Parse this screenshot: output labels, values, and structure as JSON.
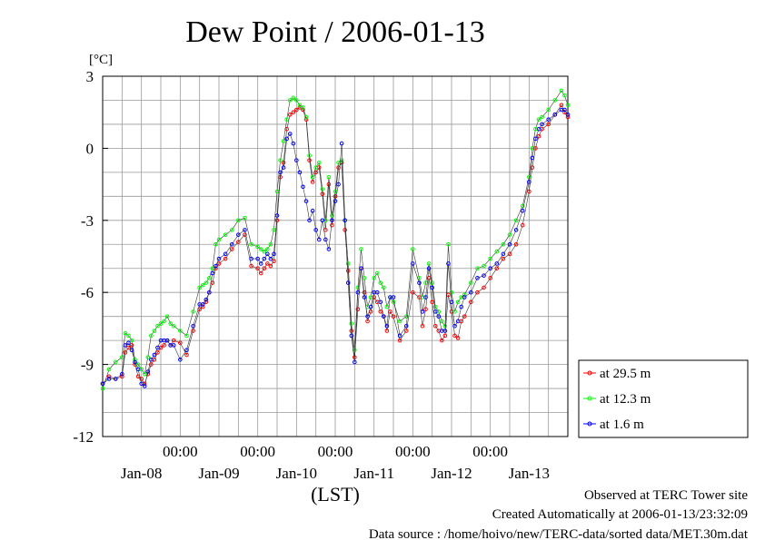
{
  "chart_data": {
    "type": "line",
    "title": "Dew Point / 2006-01-13",
    "ylabel": "[°C]",
    "xlabel": "(LST)",
    "ylim": [
      -12,
      3
    ],
    "yticks": [
      3,
      0,
      -3,
      -6,
      -9,
      -12
    ],
    "ytick_labels": [
      "3",
      "0",
      "-3",
      "-6",
      "-9",
      "-12"
    ],
    "xlim_hours": [
      0,
      144
    ],
    "xtick_labels": [
      "00:00",
      "00:00",
      "00:00",
      "00:00",
      "00:00"
    ],
    "date_labels": [
      "Jan-08",
      "Jan-09",
      "Jan-10",
      "Jan-11",
      "Jan-12",
      "Jan-13"
    ],
    "grid": true,
    "legend_position": "bottom-right",
    "series": [
      {
        "name": "at 29.5 m",
        "color": "#ff0000",
        "x": [
          0,
          2,
          4,
          6,
          7,
          8,
          9,
          10,
          11,
          12,
          13,
          14,
          15,
          16,
          17,
          18,
          19,
          20,
          21,
          22,
          24,
          26,
          28,
          30,
          31,
          32,
          33,
          34,
          35,
          36,
          38,
          40,
          42,
          44,
          46,
          48,
          49,
          50,
          51,
          52,
          53,
          54,
          55,
          56,
          57,
          58,
          59,
          60,
          61,
          62,
          63,
          64,
          65,
          66,
          67,
          68,
          69,
          70,
          71,
          72,
          73,
          74,
          75,
          76,
          77,
          78,
          79,
          80,
          81,
          82,
          83,
          84,
          85,
          86,
          87,
          88,
          89,
          90,
          92,
          94,
          96,
          98,
          99,
          100,
          101,
          102,
          103,
          104,
          105,
          106,
          107,
          108,
          109,
          110,
          111,
          112,
          114,
          116,
          118,
          120,
          122,
          124,
          126,
          128,
          130,
          132,
          133,
          134,
          135,
          136,
          138,
          140,
          142,
          143,
          144
        ],
        "y": [
          -9.8,
          -9.5,
          -9.6,
          -9.5,
          -8.5,
          -8.3,
          -8.2,
          -9.0,
          -9.5,
          -9.6,
          -9.8,
          -9.4,
          -9.0,
          -8.8,
          -8.5,
          -8.3,
          -8.2,
          -8.0,
          -8.2,
          -8.0,
          -8.1,
          -8.6,
          -7.6,
          -6.7,
          -6.6,
          -6.4,
          -6.0,
          -5.6,
          -5.0,
          -4.8,
          -4.6,
          -4.2,
          -3.9,
          -3.6,
          -4.9,
          -5.0,
          -5.2,
          -5.0,
          -4.8,
          -4.9,
          -4.7,
          -3.0,
          -1.2,
          -0.6,
          0.8,
          1.4,
          1.5,
          1.6,
          1.7,
          1.6,
          1.2,
          -0.5,
          -1.4,
          -1.0,
          -0.8,
          -1.9,
          -3.4,
          -1.5,
          -3.2,
          -2.0,
          -0.8,
          -0.6,
          -3.4,
          -5.1,
          -7.6,
          -8.7,
          -6.7,
          -5.0,
          -6.0,
          -7.2,
          -6.8,
          -6.2,
          -6.4,
          -6.8,
          -7.0,
          -7.6,
          -6.8,
          -7.0,
          -8.0,
          -7.6,
          -6.0,
          -6.2,
          -7.4,
          -6.7,
          -5.4,
          -6.4,
          -7.4,
          -7.6,
          -8.0,
          -7.8,
          -6.1,
          -6.8,
          -7.8,
          -7.9,
          -7.2,
          -7.0,
          -6.4,
          -6.0,
          -5.8,
          -5.4,
          -5.0,
          -4.6,
          -4.4,
          -4.0,
          -3.2,
          -1.8,
          -0.8,
          0.0,
          0.5,
          0.8,
          1.0,
          1.4,
          1.8,
          1.5,
          1.3
        ]
      },
      {
        "name": "at 12.3 m",
        "color": "#00ff00",
        "x": [
          0,
          2,
          4,
          6,
          7,
          8,
          9,
          10,
          11,
          12,
          13,
          14,
          15,
          16,
          17,
          18,
          19,
          20,
          21,
          22,
          24,
          26,
          28,
          30,
          31,
          32,
          33,
          34,
          35,
          36,
          38,
          40,
          42,
          44,
          46,
          48,
          49,
          50,
          51,
          52,
          53,
          54,
          55,
          56,
          57,
          58,
          59,
          60,
          61,
          62,
          63,
          64,
          65,
          66,
          67,
          68,
          69,
          70,
          71,
          72,
          73,
          74,
          75,
          76,
          77,
          78,
          79,
          80,
          81,
          82,
          83,
          84,
          85,
          86,
          87,
          88,
          89,
          90,
          92,
          94,
          96,
          98,
          99,
          100,
          101,
          102,
          103,
          104,
          105,
          106,
          107,
          108,
          109,
          110,
          111,
          112,
          114,
          116,
          118,
          120,
          122,
          124,
          126,
          128,
          130,
          132,
          133,
          134,
          135,
          136,
          138,
          140,
          142,
          143,
          144
        ],
        "y": [
          -10.0,
          -9.2,
          -8.9,
          -8.7,
          -7.7,
          -7.8,
          -8.0,
          -8.8,
          -9.0,
          -9.2,
          -9.4,
          -8.7,
          -7.8,
          -7.6,
          -7.4,
          -7.3,
          -7.2,
          -7.0,
          -7.3,
          -7.4,
          -7.6,
          -7.8,
          -6.8,
          -5.8,
          -5.7,
          -5.6,
          -5.4,
          -5.0,
          -4.0,
          -3.8,
          -3.6,
          -3.4,
          -3.0,
          -2.9,
          -4.0,
          -4.1,
          -4.2,
          -4.3,
          -4.2,
          -4.0,
          -3.4,
          -1.8,
          -0.5,
          0.3,
          1.2,
          2.0,
          2.1,
          2.0,
          1.8,
          1.7,
          1.3,
          -0.3,
          -1.2,
          -0.8,
          -0.6,
          -1.7,
          -3.0,
          -1.2,
          -2.8,
          -1.8,
          -0.6,
          -0.5,
          -3.0,
          -4.8,
          -7.3,
          -8.4,
          -5.8,
          -4.2,
          -5.4,
          -6.6,
          -6.2,
          -5.4,
          -5.2,
          -5.6,
          -5.8,
          -6.6,
          -6.2,
          -6.4,
          -7.2,
          -7.0,
          -4.2,
          -5.4,
          -6.2,
          -5.6,
          -4.8,
          -5.6,
          -6.6,
          -6.8,
          -7.2,
          -7.4,
          -4.0,
          -6.0,
          -6.8,
          -6.4,
          -6.2,
          -6.1,
          -5.6,
          -5.0,
          -4.9,
          -4.6,
          -4.3,
          -4.0,
          -3.6,
          -3.0,
          -2.4,
          -1.2,
          0.0,
          0.8,
          1.2,
          1.3,
          1.6,
          2.0,
          2.4,
          2.2,
          1.8
        ]
      },
      {
        "name": "at 1.6 m",
        "color": "#0000ff",
        "x": [
          0,
          2,
          4,
          6,
          7,
          8,
          9,
          10,
          11,
          12,
          13,
          14,
          15,
          16,
          17,
          18,
          19,
          20,
          21,
          22,
          24,
          26,
          28,
          30,
          31,
          32,
          33,
          34,
          35,
          36,
          38,
          40,
          42,
          44,
          46,
          48,
          49,
          50,
          51,
          52,
          53,
          54,
          55,
          56,
          57,
          58,
          59,
          60,
          61,
          62,
          63,
          64,
          65,
          66,
          67,
          68,
          69,
          70,
          71,
          72,
          73,
          74,
          75,
          76,
          77,
          78,
          79,
          80,
          81,
          82,
          83,
          84,
          85,
          86,
          87,
          88,
          89,
          90,
          92,
          94,
          96,
          98,
          99,
          100,
          101,
          102,
          103,
          104,
          105,
          106,
          107,
          108,
          109,
          110,
          111,
          112,
          114,
          116,
          118,
          120,
          122,
          124,
          126,
          128,
          130,
          132,
          133,
          134,
          135,
          136,
          138,
          140,
          142,
          143,
          144
        ],
        "y": [
          -9.8,
          -9.6,
          -9.6,
          -9.4,
          -8.2,
          -8.1,
          -8.4,
          -8.9,
          -9.2,
          -9.8,
          -9.9,
          -9.3,
          -8.8,
          -8.6,
          -8.3,
          -8.0,
          -8.0,
          -8.0,
          -8.2,
          -8.2,
          -8.8,
          -8.4,
          -7.4,
          -6.5,
          -6.5,
          -6.3,
          -6.0,
          -5.2,
          -4.9,
          -4.6,
          -4.4,
          -4.0,
          -3.6,
          -3.4,
          -4.6,
          -4.6,
          -4.8,
          -4.6,
          -4.4,
          -4.6,
          -4.4,
          -2.8,
          -1.0,
          -0.8,
          0.4,
          0.6,
          0.2,
          -0.5,
          -1.0,
          -1.6,
          -2.2,
          -3.0,
          -2.6,
          -3.4,
          -3.8,
          -3.0,
          -3.8,
          -4.2,
          -3.0,
          -2.2,
          -1.5,
          0.2,
          -3.0,
          -5.6,
          -7.8,
          -8.9,
          -6.0,
          -5.0,
          -6.2,
          -7.0,
          -6.6,
          -6.0,
          -6.0,
          -6.4,
          -7.0,
          -7.4,
          -6.2,
          -6.2,
          -7.8,
          -7.4,
          -4.8,
          -5.6,
          -6.8,
          -6.2,
          -5.0,
          -5.8,
          -6.8,
          -7.0,
          -7.6,
          -7.6,
          -4.8,
          -6.4,
          -7.4,
          -7.2,
          -6.6,
          -6.2,
          -6.0,
          -5.4,
          -5.3,
          -5.0,
          -4.8,
          -4.4,
          -4.0,
          -3.4,
          -2.6,
          -1.4,
          -0.4,
          0.4,
          0.8,
          1.0,
          1.2,
          1.4,
          1.6,
          1.6,
          1.4
        ]
      }
    ]
  },
  "footer": {
    "line1": "Observed at TERC Tower site",
    "line2": "Created Automatically at 2006-01-13/23:32:09",
    "line3": "Data source : /home/hoivo/new/TERC-data/sorted  data/MET.30m.dat"
  }
}
